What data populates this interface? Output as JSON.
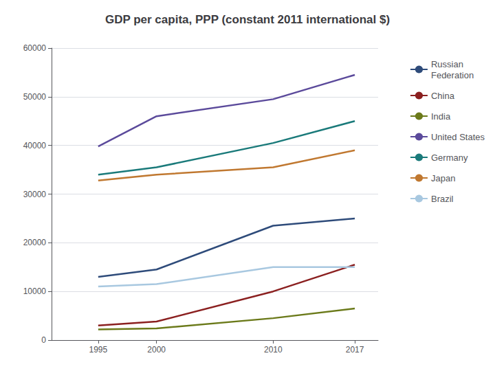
{
  "chart_data": {
    "type": "line",
    "title": "GDP per capita, PPP (constant 2011 international $)",
    "x": [
      1995,
      2000,
      2010,
      2017
    ],
    "series": [
      {
        "name": "Russian\nFederation",
        "color": "#2E4B7A",
        "values": [
          13000,
          14500,
          23500,
          25000
        ]
      },
      {
        "name": "China",
        "color": "#8B2020",
        "values": [
          3000,
          3800,
          10000,
          15500
        ]
      },
      {
        "name": "India",
        "color": "#6B7A1A",
        "values": [
          2200,
          2400,
          4500,
          6500
        ]
      },
      {
        "name": "United States",
        "color": "#5B4A9B",
        "values": [
          39800,
          46000,
          49500,
          54500
        ]
      },
      {
        "name": "Germany",
        "color": "#1A7A7A",
        "values": [
          34000,
          35500,
          40500,
          45000
        ]
      },
      {
        "name": "Japan",
        "color": "#C07830",
        "values": [
          32800,
          34000,
          35500,
          39000
        ]
      },
      {
        "name": "Brazil",
        "color": "#A8C8E0",
        "values": [
          11000,
          11500,
          15000,
          15000
        ]
      }
    ],
    "xlim": [
      1991,
      2019
    ],
    "xticks": [
      1995,
      2000,
      2010,
      2017
    ],
    "ylim": [
      0,
      60000
    ],
    "yticks": [
      0,
      10000,
      20000,
      30000,
      40000,
      50000,
      60000
    ],
    "grid": true,
    "legend": "right"
  }
}
